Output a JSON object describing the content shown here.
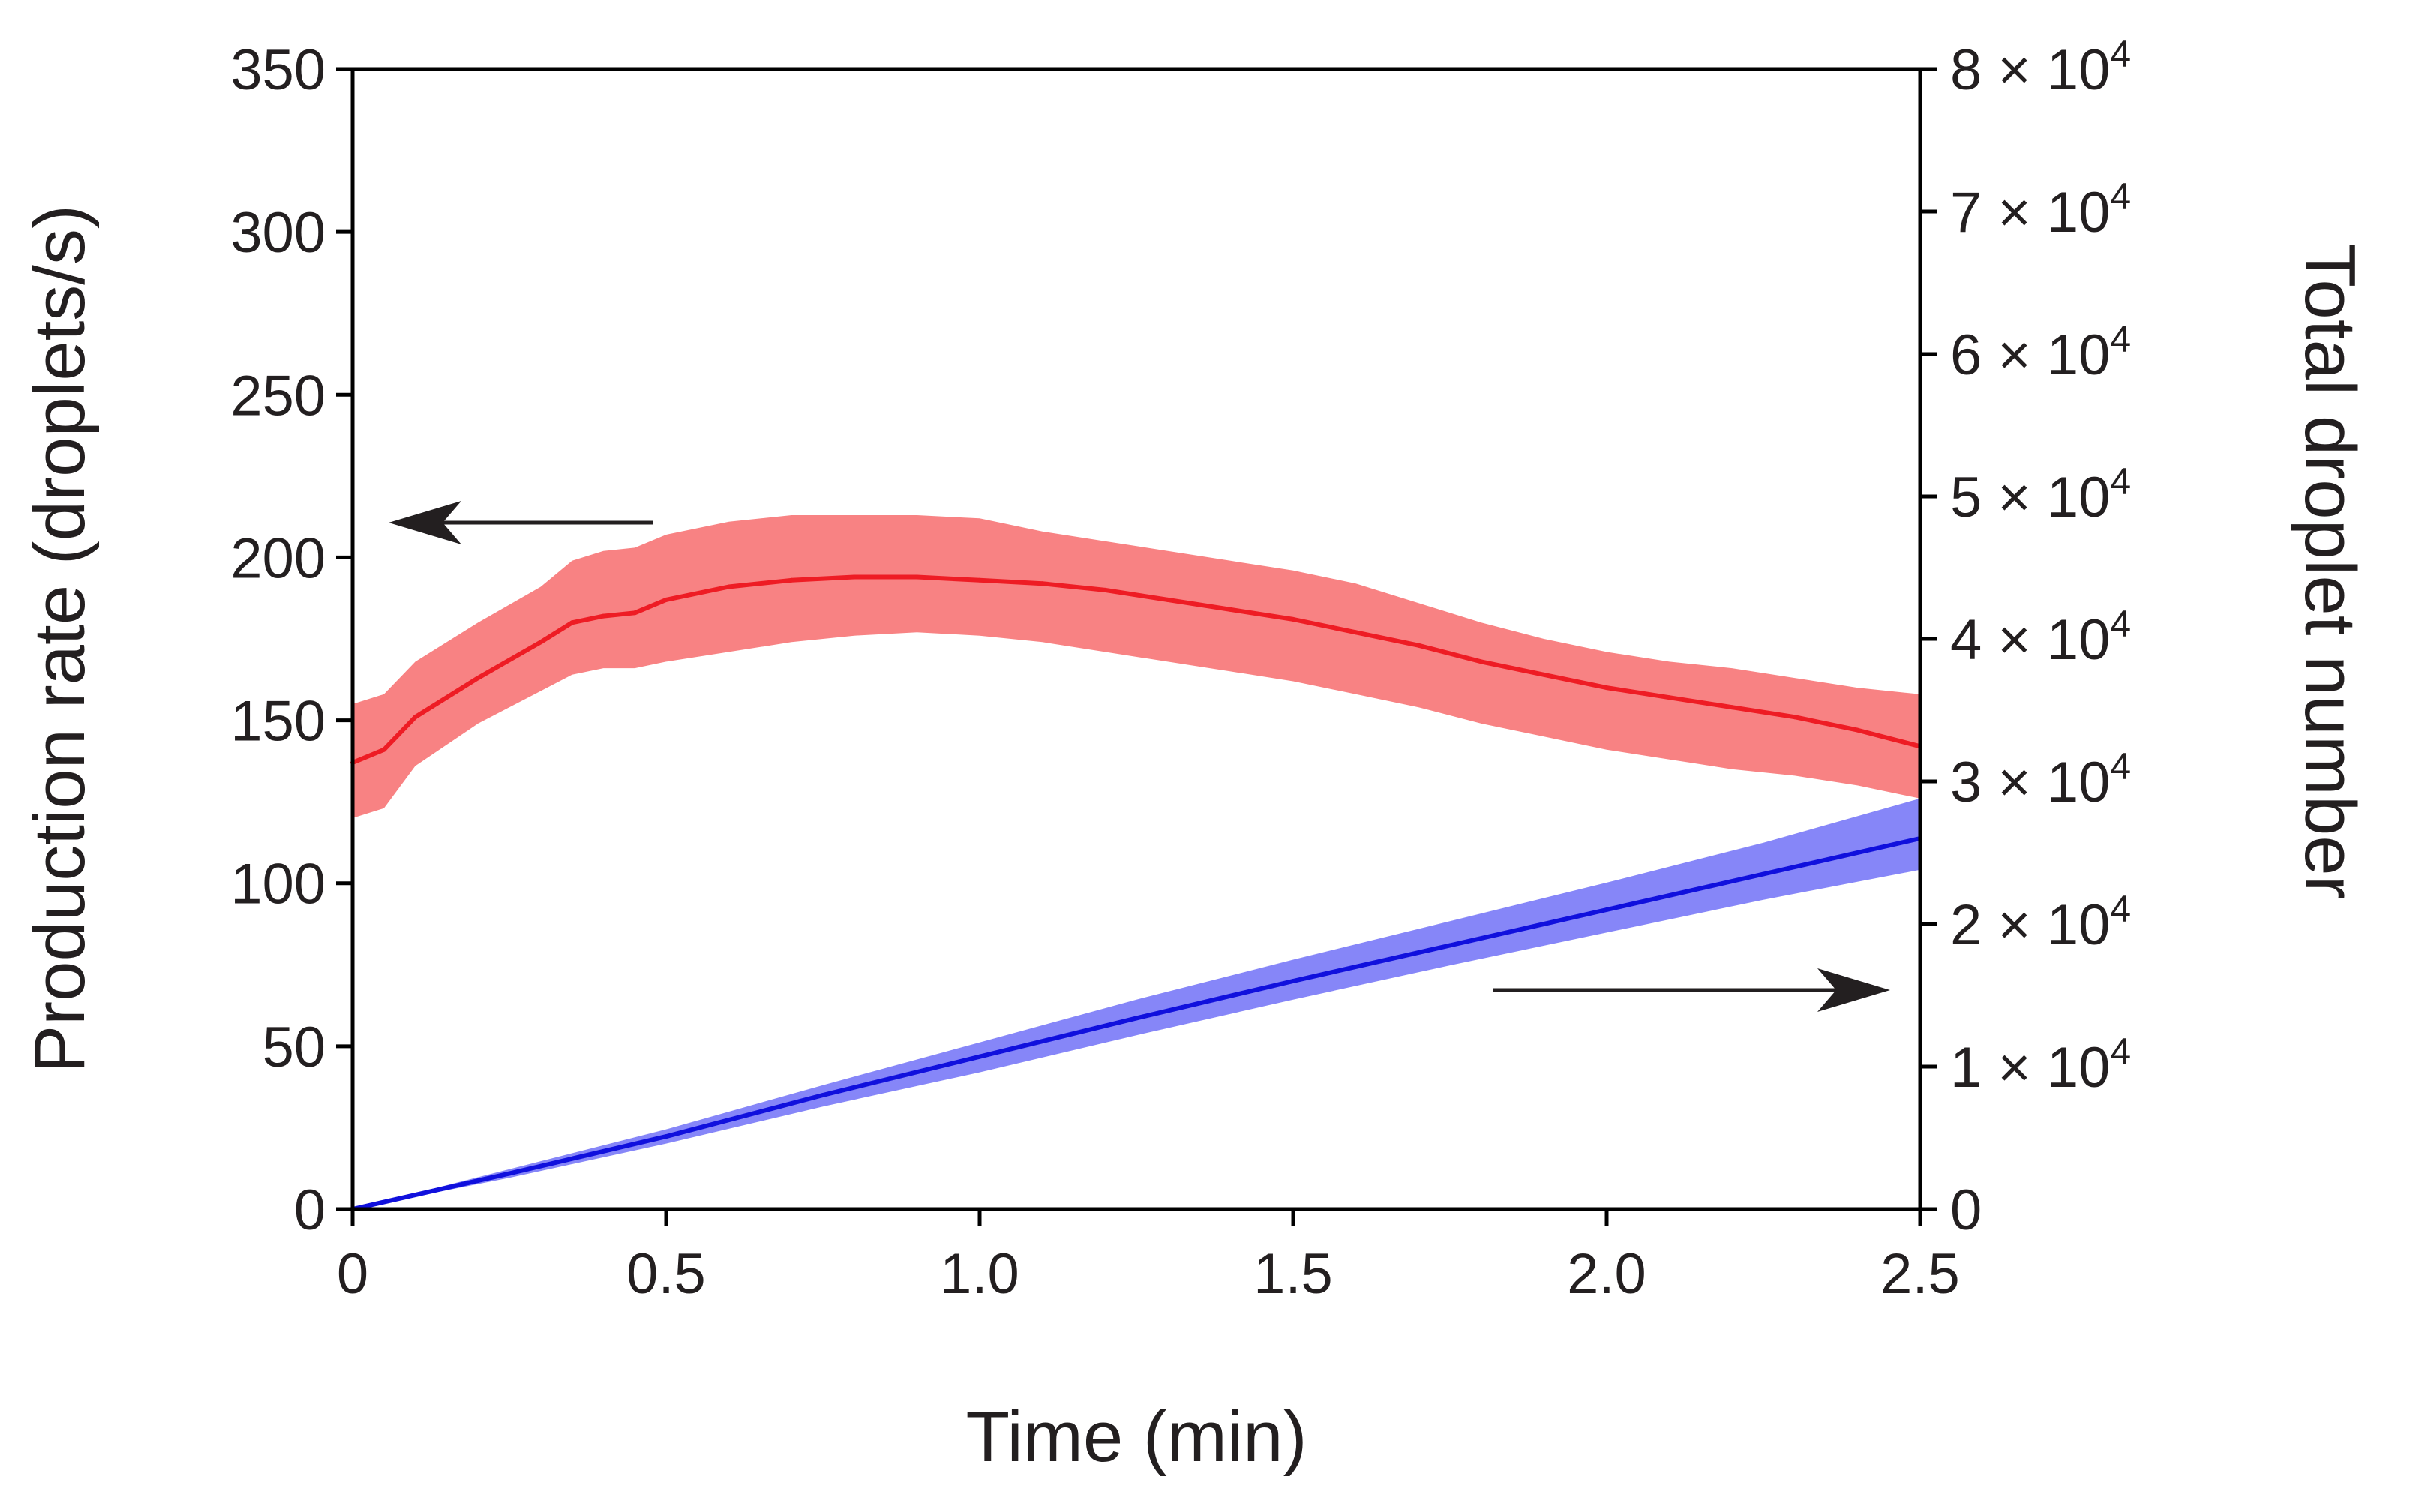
{
  "chart_data": {
    "type": "line",
    "title": "",
    "xlabel": "Time (min)",
    "ylabel": "Production rate (droplets/s)",
    "y2label": "Total droplet number",
    "xlim": [
      0,
      2.5
    ],
    "ylim": [
      0,
      350
    ],
    "y2lim": [
      0,
      80000
    ],
    "xticks": [
      "0",
      "0.5",
      "1.0",
      "1.5",
      "2.0",
      "2.5"
    ],
    "yticks": [
      "0",
      "50",
      "100",
      "150",
      "200",
      "250",
      "300",
      "350"
    ],
    "y2ticks": [
      {
        "base": "0",
        "exp": ""
      },
      {
        "base": "1 × 10",
        "exp": "4"
      },
      {
        "base": "2 × 10",
        "exp": "4"
      },
      {
        "base": "3 × 10",
        "exp": "4"
      },
      {
        "base": "4 × 10",
        "exp": "4"
      },
      {
        "base": "5 × 10",
        "exp": "4"
      },
      {
        "base": "6 × 10",
        "exp": "4"
      },
      {
        "base": "7 × 10",
        "exp": "4"
      },
      {
        "base": "8 × 10",
        "exp": "4"
      }
    ],
    "colors": {
      "rate_line": "#ee1c24",
      "rate_band": "#f88283",
      "total_line": "#1010dd",
      "total_band": "#8686f8",
      "arrow": "#231f20"
    },
    "series": [
      {
        "name": "Production rate",
        "axis": "left",
        "x": [
          0,
          0.05,
          0.1,
          0.2,
          0.3,
          0.35,
          0.4,
          0.45,
          0.5,
          0.6,
          0.7,
          0.8,
          0.9,
          1.0,
          1.1,
          1.2,
          1.3,
          1.4,
          1.5,
          1.6,
          1.7,
          1.8,
          1.9,
          2.0,
          2.1,
          2.2,
          2.3,
          2.4,
          2.5
        ],
        "values": [
          137,
          141,
          151,
          163,
          174,
          180,
          182,
          183,
          187,
          191,
          193,
          194,
          194,
          193,
          192,
          190,
          187,
          184,
          181,
          177,
          173,
          168,
          164,
          160,
          157,
          154,
          151,
          147,
          142
        ],
        "lower": [
          120,
          123,
          136,
          149,
          159,
          164,
          166,
          166,
          168,
          171,
          174,
          176,
          177,
          176,
          174,
          171,
          168,
          165,
          162,
          158,
          154,
          149,
          145,
          141,
          138,
          135,
          133,
          130,
          126
        ],
        "upper": [
          155,
          158,
          168,
          180,
          191,
          199,
          202,
          203,
          207,
          211,
          213,
          213,
          213,
          212,
          208,
          205,
          202,
          199,
          196,
          192,
          186,
          180,
          175,
          171,
          168,
          166,
          163,
          160,
          158
        ]
      },
      {
        "name": "Total droplet number",
        "axis": "right",
        "x": [
          0,
          0.25,
          0.5,
          0.75,
          1.0,
          1.25,
          1.5,
          1.75,
          2.0,
          2.25,
          2.5
        ],
        "values": [
          0,
          2500,
          5100,
          8000,
          10700,
          13400,
          16000,
          18500,
          21000,
          23500,
          26000
        ],
        "lower": [
          0,
          2200,
          4600,
          7200,
          9600,
          12200,
          14700,
          17100,
          19400,
          21700,
          23800
        ],
        "upper": [
          0,
          2800,
          5600,
          8700,
          11700,
          14700,
          17500,
          20200,
          22900,
          25700,
          28800
        ]
      }
    ],
    "annotations": [
      {
        "type": "arrow",
        "direction": "left",
        "points_to": "left axis"
      },
      {
        "type": "arrow",
        "direction": "right",
        "points_to": "right axis"
      }
    ]
  }
}
